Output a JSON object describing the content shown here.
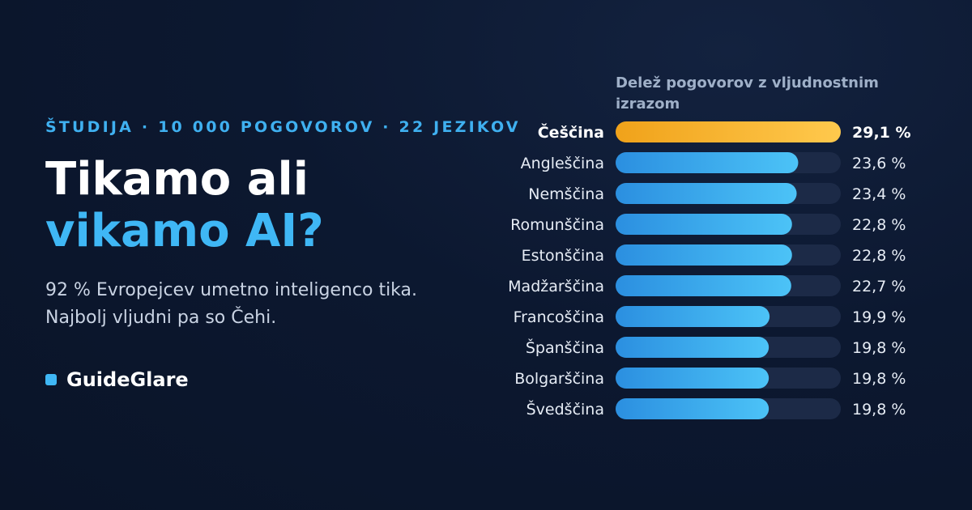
{
  "header": {
    "eyebrow": "ŠTUDIJA · 10 000 POGOVOROV · 22 JEZIKOV",
    "title_line1": "Tikamo ali",
    "title_line2": "vikamo AI?",
    "subtitle": "92 % Evropejcev umetno inteligenco tika. Najbolj vljudni pa so Čehi.",
    "brand": "GuideGlare"
  },
  "colors": {
    "accent": "#3fb7f5",
    "highlight_start": "#f0a21a",
    "highlight_end": "#ffc94d",
    "bar_start": "#2b8fe0",
    "bar_end": "#4cc3f7",
    "track": "#1c2a47"
  },
  "chart_data": {
    "type": "bar",
    "orientation": "horizontal",
    "title": "Delež pogovorov z vljudnostnim izrazom",
    "categories": [
      "Češčina",
      "Angleščina",
      "Nemščina",
      "Romunščina",
      "Estonščina",
      "Madžarščina",
      "Francoščina",
      "Španščina",
      "Bolgarščina",
      "Švedščina"
    ],
    "values": [
      29.1,
      23.6,
      23.4,
      22.8,
      22.8,
      22.7,
      19.9,
      19.8,
      19.8,
      19.8
    ],
    "value_labels": [
      "29,1 %",
      "23,6 %",
      "23,4 %",
      "22,8 %",
      "22,8 %",
      "22,7 %",
      "19,9 %",
      "19,8 %",
      "19,8 %",
      "19,8 %"
    ],
    "highlight_index": 0,
    "xlim": [
      0,
      29.1
    ],
    "grid": false
  }
}
